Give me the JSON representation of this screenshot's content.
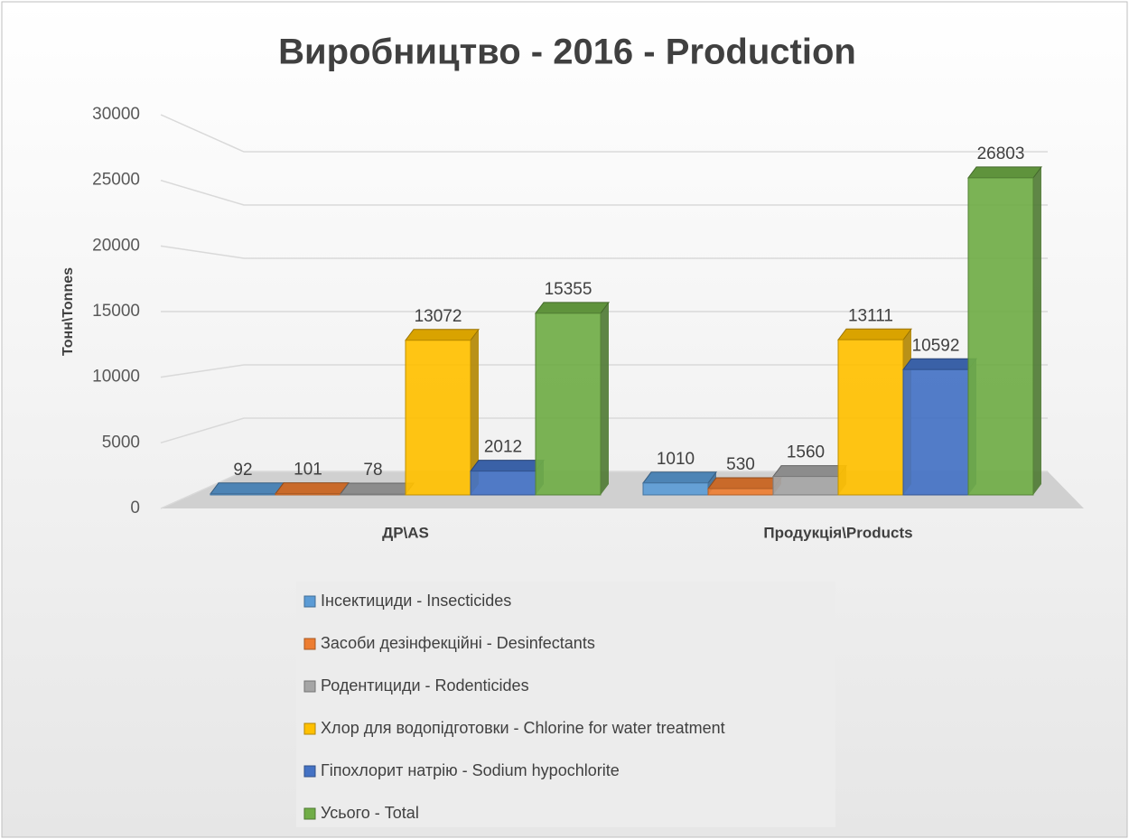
{
  "chart_data": {
    "type": "bar",
    "title": "Виробництво - 2016 - Production",
    "y_label": "Тонн\\Tonnes",
    "categories": [
      "ДР\\AS",
      "Продукція\\Products"
    ],
    "series": [
      {
        "name": "Інсектициди - Insecticides",
        "color": "#5b9bd5",
        "values": [
          92,
          1010
        ]
      },
      {
        "name": "Засоби дезінфекційні - Desinfectants",
        "color": "#ed7d31",
        "values": [
          101,
          530
        ]
      },
      {
        "name": "Родентициди - Rodenticides",
        "color": "#a5a5a5",
        "values": [
          78,
          1560
        ]
      },
      {
        "name": "Хлор для водопідготовки - Chlorine for water treatment",
        "color": "#ffc000",
        "values": [
          13072,
          13111
        ]
      },
      {
        "name": "Гіпохлорит натрію - Sodium hypochlorite",
        "color": "#4472c4",
        "values": [
          2012,
          10592
        ]
      },
      {
        "name": "Усього - Total",
        "color": "#70ad47",
        "values": [
          15355,
          26803
        ]
      }
    ],
    "ylim": [
      0,
      30000
    ],
    "yticks": [
      0,
      5000,
      10000,
      15000,
      20000,
      25000,
      30000
    ],
    "grid": true,
    "legend": "bottom"
  }
}
